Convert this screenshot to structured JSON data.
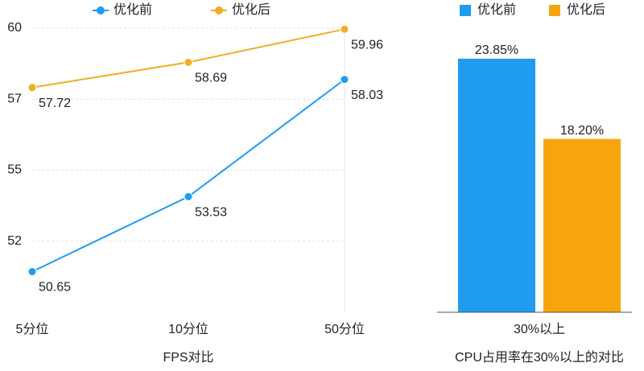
{
  "chart_data": [
    {
      "type": "line",
      "title": "FPS对比",
      "categories": [
        "5分位",
        "10分位",
        "50分位"
      ],
      "series": [
        {
          "name": "优化前",
          "color": "#1f9cef",
          "values": [
            50.65,
            53.53,
            58.03
          ]
        },
        {
          "name": "优化后",
          "color": "#f2ae22",
          "values": [
            57.72,
            58.69,
            59.96
          ]
        }
      ],
      "ylim": [
        49.09,
        60
      ],
      "yticks": [
        {
          "value": 51.82,
          "label": "52"
        },
        {
          "value": 54.55,
          "label": "55"
        },
        {
          "value": 57.27,
          "label": "57"
        },
        60
      ],
      "grid": true
    },
    {
      "type": "bar",
      "title": "CPU占用率在30%以上的对比",
      "categories": [
        "30%以上"
      ],
      "series": [
        {
          "name": "优化前",
          "color": "#1f9cef",
          "values": [
            23.85
          ],
          "value_labels": [
            "23.85%"
          ]
        },
        {
          "name": "优化后",
          "color": "#f7a50c",
          "values": [
            18.2
          ],
          "value_labels": [
            "18.20%"
          ]
        }
      ],
      "ylim": [
        6,
        26
      ]
    }
  ]
}
